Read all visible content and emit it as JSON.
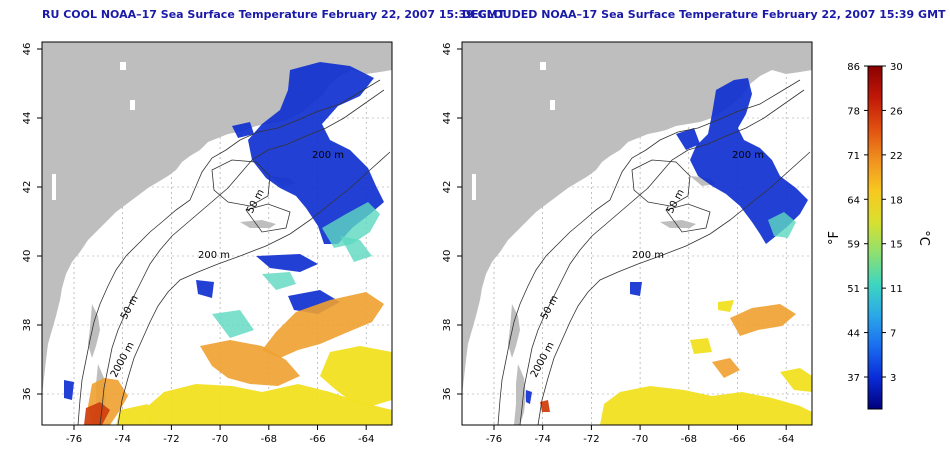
{
  "panels": {
    "left": {
      "title": "RU COOL NOAA–17 Sea Surface Temperature February 22, 2007 15:39 GMT"
    },
    "right": {
      "title": "DECLOUDED NOAA–17 Sea Surface Temperature February 22, 2007 15:39 GMT"
    }
  },
  "axes": {
    "x_ticks": [
      "-76",
      "-74",
      "-72",
      "-70",
      "-68",
      "-66",
      "-64"
    ],
    "y_ticks": [
      "46",
      "44",
      "42",
      "40",
      "38",
      "36"
    ]
  },
  "contour_labels": [
    "200 m",
    "50 m",
    "200 m",
    "50 m",
    "2000 m"
  ],
  "colorbar": {
    "left_unit": "°F",
    "right_unit": "°C",
    "f_ticks": [
      "86",
      "78",
      "71",
      "64",
      "59",
      "51",
      "44",
      "37"
    ],
    "c_ticks": [
      "30",
      "26",
      "22",
      "18",
      "15",
      "11",
      "7",
      "3"
    ],
    "colors": [
      "#00007a",
      "#0a2bd8",
      "#1a6cf0",
      "#2aa8e8",
      "#3ed6c0",
      "#8ee070",
      "#d8e030",
      "#f8c820",
      "#f09020",
      "#e05010",
      "#c01808",
      "#8a0000"
    ]
  },
  "colors": {
    "land": "#bebebe",
    "title": "#1a1aa8",
    "cold": "#1030d0",
    "warm_yellow": "#f2e020",
    "warm_orange": "#f0a030"
  }
}
